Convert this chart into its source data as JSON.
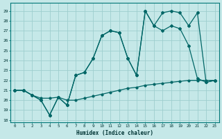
{
  "bg_color": "#c5e8e8",
  "grid_color": "#9ecece",
  "line_color": "#006666",
  "xlabel": "Humidex (Indice chaleur)",
  "ylim": [
    17.8,
    29.8
  ],
  "xlim": [
    -0.5,
    23.5
  ],
  "yticks": [
    18,
    19,
    20,
    21,
    22,
    23,
    24,
    25,
    26,
    27,
    28,
    29
  ],
  "xticks": [
    0,
    1,
    2,
    3,
    4,
    5,
    6,
    7,
    8,
    9,
    10,
    11,
    12,
    13,
    14,
    15,
    16,
    17,
    18,
    19,
    20,
    21,
    22,
    23
  ],
  "line1_y": [
    21.0,
    21.0,
    20.5,
    20.2,
    20.2,
    20.3,
    20.0,
    20.0,
    20.2,
    20.4,
    20.6,
    20.8,
    21.0,
    21.2,
    21.3,
    21.5,
    21.6,
    21.7,
    21.8,
    21.9,
    22.0,
    22.0,
    22.0,
    22.0
  ],
  "line2_y": [
    21.0,
    21.0,
    20.5,
    20.0,
    18.5,
    20.3,
    19.5,
    22.5,
    22.8,
    24.2,
    26.5,
    27.0,
    26.8,
    24.2,
    22.5,
    29.0,
    27.5,
    27.0,
    27.5,
    27.2,
    25.5,
    22.2,
    21.8,
    22.0
  ],
  "line3_y": [
    21.0,
    21.0,
    20.5,
    20.0,
    18.5,
    20.3,
    19.5,
    22.5,
    22.8,
    24.2,
    26.5,
    27.0,
    26.8,
    24.2,
    22.5,
    29.0,
    27.5,
    28.8,
    29.0,
    28.8,
    27.5,
    28.8,
    21.8,
    22.0
  ]
}
